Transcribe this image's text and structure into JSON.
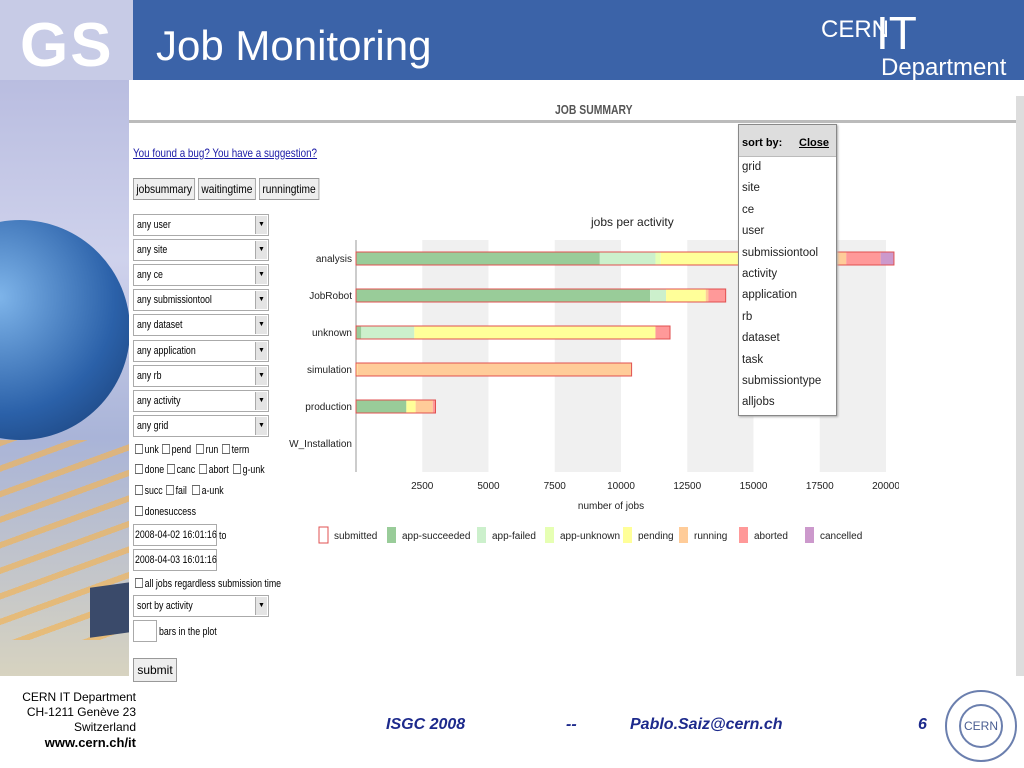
{
  "slide": {
    "logo": "GS",
    "title": "Job Monitoring",
    "cern_it_top": "CERN",
    "cern_it_big": "IT",
    "cern_it_bottom": "Department"
  },
  "page": {
    "section_title": "JOB SUMMARY",
    "bug_link": "You found a bug? You have a suggestion?"
  },
  "tabs": [
    {
      "label": "jobsummary"
    },
    {
      "label": "waitingtime"
    },
    {
      "label": "runningtime"
    }
  ],
  "filters": [
    {
      "value": "any user"
    },
    {
      "value": "any site"
    },
    {
      "value": "any ce"
    },
    {
      "value": "any submissiontool"
    },
    {
      "value": "any dataset"
    },
    {
      "value": "any application"
    },
    {
      "value": "any rb"
    },
    {
      "value": "any activity"
    },
    {
      "value": "any grid"
    }
  ],
  "statuses": [
    {
      "label": "unk"
    },
    {
      "label": "pend"
    },
    {
      "label": "run"
    },
    {
      "label": "term"
    },
    {
      "label": "done"
    },
    {
      "label": "canc"
    },
    {
      "label": "abort"
    },
    {
      "label": "g-unk"
    },
    {
      "label": "succ"
    },
    {
      "label": "fail"
    },
    {
      "label": "a-unk"
    },
    {
      "label": "donesuccess"
    }
  ],
  "dates": {
    "from": "2008-04-02 16:01:16",
    "to_label": "to",
    "to": "2008-04-03 16:01:16"
  },
  "all_jobs_label": "all jobs regardless submission time",
  "sort_select": "sort by activity",
  "bars_label": "bars in the plot",
  "submit_label": "submit",
  "sortbox": {
    "header": "sort by:",
    "close": "Close",
    "items": [
      "grid",
      "site",
      "ce",
      "user",
      "submissiontool",
      "activity",
      "application",
      "rb",
      "dataset",
      "task",
      "submissiontype",
      "alljobs"
    ]
  },
  "footer": {
    "line1": "CERN IT Department",
    "line2": "CH-1211 Genève 23",
    "line3": "Switzerland",
    "www": "www.cern.ch/it",
    "conf": "ISGC 2008",
    "dash": "--",
    "email": "Pablo.Saiz@cern.ch",
    "page": "6",
    "logo_text": "CERN"
  },
  "chart_data": {
    "type": "bar",
    "orientation": "horizontal",
    "stacked": true,
    "title": "jobs per activity",
    "xlabel": "number of jobs",
    "ylabel": "",
    "xlim": [
      0,
      20000
    ],
    "xticks": [
      2500,
      5000,
      7500,
      10000,
      12500,
      15000,
      17500,
      20000
    ],
    "categories": [
      "analysis",
      "JobRobot",
      "unknown",
      "simulation",
      "production",
      "SW_Installation"
    ],
    "series": [
      {
        "name": "submitted",
        "color": "#ffffff",
        "values": [
          0,
          0,
          0,
          0,
          0,
          0
        ]
      },
      {
        "name": "app-succeeded",
        "color": "#99cc99",
        "values": [
          9200,
          11100,
          200,
          0,
          1900,
          0
        ]
      },
      {
        "name": "app-failed",
        "color": "#ccf0cc",
        "values": [
          2100,
          600,
          2000,
          0,
          0,
          0
        ]
      },
      {
        "name": "app-unknown",
        "color": "#e6ffb3",
        "values": [
          200,
          0,
          0,
          0,
          0,
          0
        ]
      },
      {
        "name": "pending",
        "color": "#ffff99",
        "values": [
          6600,
          1500,
          9100,
          50,
          350,
          0
        ]
      },
      {
        "name": "running",
        "color": "#ffcc99",
        "values": [
          400,
          100,
          0,
          10350,
          650,
          0
        ]
      },
      {
        "name": "aborted",
        "color": "#ff9999",
        "values": [
          1300,
          650,
          550,
          0,
          100,
          0
        ]
      },
      {
        "name": "cancelled",
        "color": "#cc99cc",
        "values": [
          500,
          0,
          0,
          0,
          0,
          0
        ]
      }
    ],
    "legend_position": "bottom",
    "grid": "alternating-columns"
  }
}
